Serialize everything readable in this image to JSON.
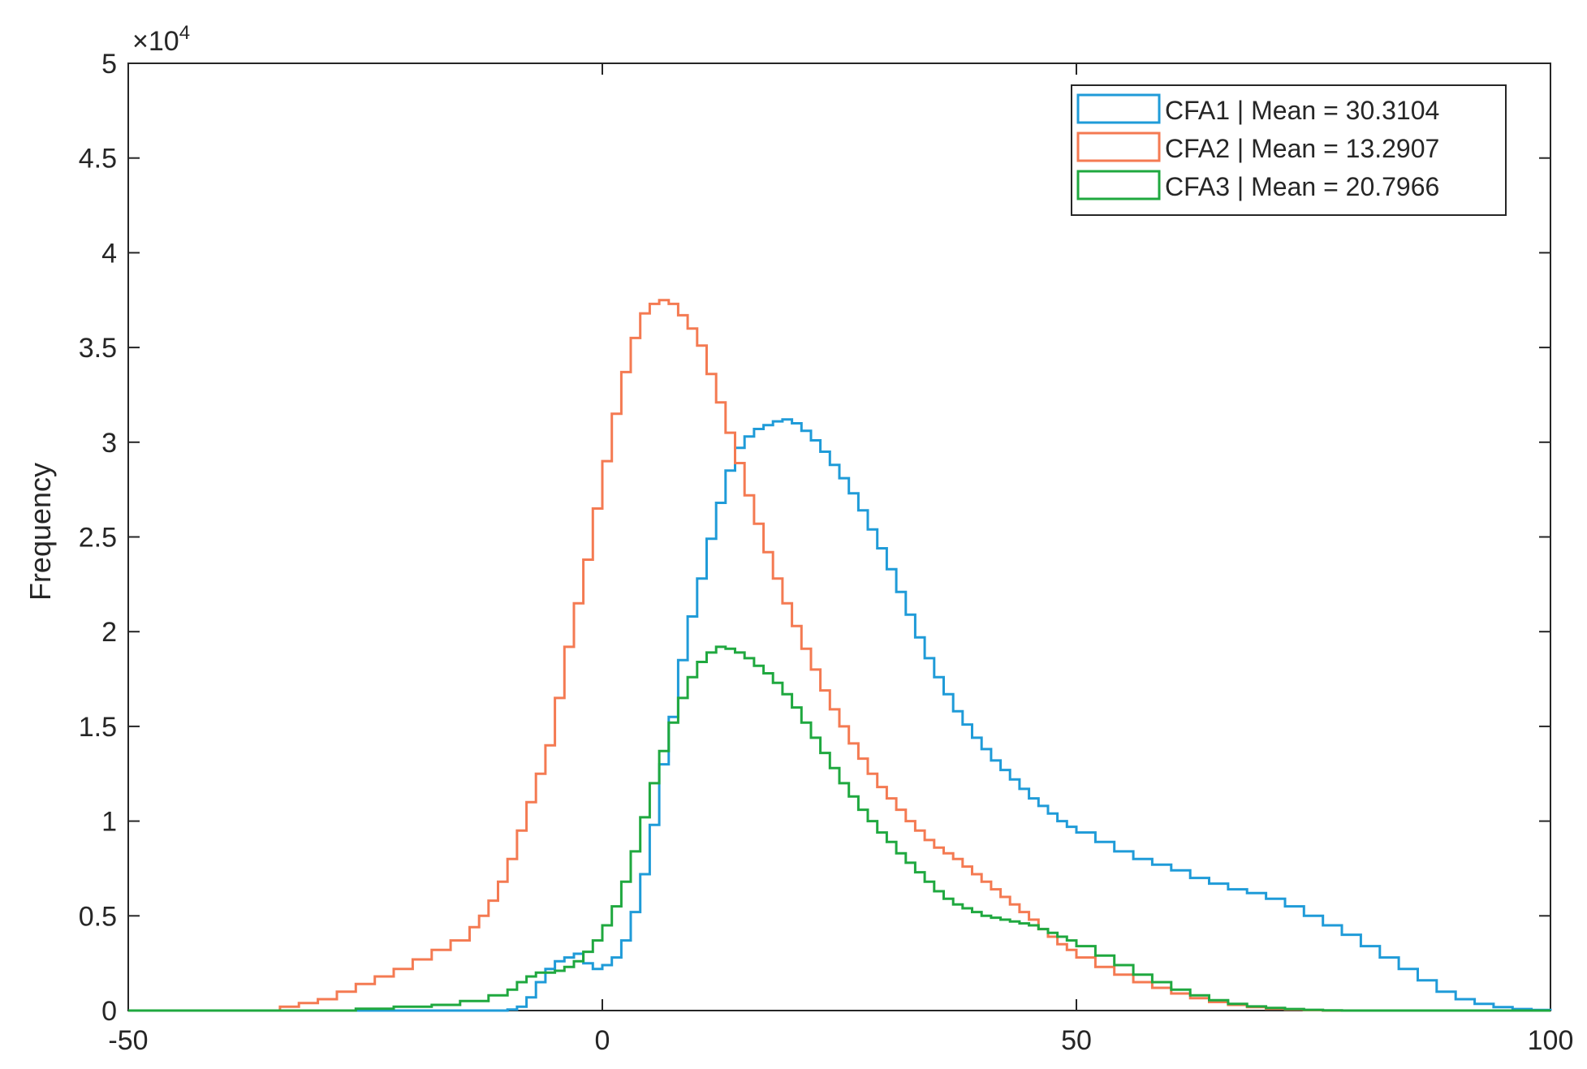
{
  "chart_data": {
    "type": "histogram",
    "title": "",
    "xlabel": "",
    "ylabel": "Frequency",
    "y_exponent_label": "×10",
    "y_exponent_power": "4",
    "y_exponent": 4,
    "xlim": [
      -50,
      100
    ],
    "ylim": [
      0,
      50000
    ],
    "xticks": [
      -50,
      0,
      50,
      100
    ],
    "xtick_labels": [
      "-50",
      "0",
      "50",
      "100"
    ],
    "yticks": [
      0,
      5000,
      10000,
      15000,
      20000,
      25000,
      30000,
      35000,
      40000,
      45000,
      50000
    ],
    "ytick_labels": [
      "0",
      "0.5",
      "1",
      "1.5",
      "2",
      "2.5",
      "3",
      "3.5",
      "4",
      "4.5",
      "5"
    ],
    "grid": false,
    "legend_position": "top-right",
    "series": [
      {
        "name": "CFA1 | Mean = 30.3104",
        "color": "#1f9bd8",
        "points": [
          [
            -50,
            0
          ],
          [
            -20,
            0
          ],
          [
            -10,
            50
          ],
          [
            -9,
            200
          ],
          [
            -8,
            700
          ],
          [
            -7,
            1500
          ],
          [
            -6,
            2200
          ],
          [
            -5,
            2600
          ],
          [
            -4,
            2800
          ],
          [
            -3,
            3000
          ],
          [
            -2,
            2500
          ],
          [
            -1,
            2200
          ],
          [
            0,
            2400
          ],
          [
            1,
            2800
          ],
          [
            2,
            3700
          ],
          [
            3,
            5200
          ],
          [
            4,
            7200
          ],
          [
            5,
            9800
          ],
          [
            6,
            13000
          ],
          [
            7,
            15500
          ],
          [
            8,
            18500
          ],
          [
            9,
            20800
          ],
          [
            10,
            22800
          ],
          [
            11,
            24900
          ],
          [
            12,
            26800
          ],
          [
            13,
            28500
          ],
          [
            14,
            29700
          ],
          [
            15,
            30300
          ],
          [
            16,
            30700
          ],
          [
            17,
            30900
          ],
          [
            18,
            31100
          ],
          [
            19,
            31200
          ],
          [
            20,
            31000
          ],
          [
            21,
            30600
          ],
          [
            22,
            30100
          ],
          [
            23,
            29500
          ],
          [
            24,
            28800
          ],
          [
            25,
            28100
          ],
          [
            26,
            27300
          ],
          [
            27,
            26400
          ],
          [
            28,
            25400
          ],
          [
            29,
            24400
          ],
          [
            30,
            23300
          ],
          [
            31,
            22100
          ],
          [
            32,
            20900
          ],
          [
            33,
            19700
          ],
          [
            34,
            18600
          ],
          [
            35,
            17600
          ],
          [
            36,
            16700
          ],
          [
            37,
            15800
          ],
          [
            38,
            15100
          ],
          [
            39,
            14400
          ],
          [
            40,
            13800
          ],
          [
            41,
            13200
          ],
          [
            42,
            12700
          ],
          [
            43,
            12200
          ],
          [
            44,
            11700
          ],
          [
            45,
            11200
          ],
          [
            46,
            10800
          ],
          [
            47,
            10400
          ],
          [
            48,
            10000
          ],
          [
            49,
            9700
          ],
          [
            50,
            9400
          ],
          [
            52,
            8900
          ],
          [
            54,
            8400
          ],
          [
            56,
            8000
          ],
          [
            58,
            7700
          ],
          [
            60,
            7400
          ],
          [
            62,
            7000
          ],
          [
            64,
            6700
          ],
          [
            66,
            6400
          ],
          [
            68,
            6200
          ],
          [
            70,
            5900
          ],
          [
            72,
            5500
          ],
          [
            74,
            5000
          ],
          [
            76,
            4500
          ],
          [
            78,
            4000
          ],
          [
            80,
            3400
          ],
          [
            82,
            2800
          ],
          [
            84,
            2200
          ],
          [
            86,
            1600
          ],
          [
            88,
            1000
          ],
          [
            90,
            600
          ],
          [
            92,
            350
          ],
          [
            94,
            180
          ],
          [
            96,
            80
          ],
          [
            98,
            30
          ],
          [
            100,
            0
          ]
        ]
      },
      {
        "name": "CFA2 | Mean = 13.2907",
        "color": "#f47a52",
        "points": [
          [
            -50,
            0
          ],
          [
            -37,
            0
          ],
          [
            -34,
            200
          ],
          [
            -32,
            400
          ],
          [
            -30,
            600
          ],
          [
            -28,
            1000
          ],
          [
            -26,
            1400
          ],
          [
            -24,
            1800
          ],
          [
            -22,
            2200
          ],
          [
            -20,
            2700
          ],
          [
            -18,
            3200
          ],
          [
            -16,
            3700
          ],
          [
            -14,
            4400
          ],
          [
            -13,
            5000
          ],
          [
            -12,
            5800
          ],
          [
            -11,
            6800
          ],
          [
            -10,
            8000
          ],
          [
            -9,
            9500
          ],
          [
            -8,
            11000
          ],
          [
            -7,
            12500
          ],
          [
            -6,
            14000
          ],
          [
            -5,
            16500
          ],
          [
            -4,
            19200
          ],
          [
            -3,
            21500
          ],
          [
            -2,
            23800
          ],
          [
            -1,
            26500
          ],
          [
            0,
            29000
          ],
          [
            1,
            31500
          ],
          [
            2,
            33700
          ],
          [
            3,
            35500
          ],
          [
            4,
            36800
          ],
          [
            5,
            37300
          ],
          [
            6,
            37500
          ],
          [
            7,
            37300
          ],
          [
            8,
            36700
          ],
          [
            9,
            36000
          ],
          [
            10,
            35100
          ],
          [
            11,
            33600
          ],
          [
            12,
            32100
          ],
          [
            13,
            30500
          ],
          [
            14,
            28900
          ],
          [
            15,
            27200
          ],
          [
            16,
            25700
          ],
          [
            17,
            24200
          ],
          [
            18,
            22800
          ],
          [
            19,
            21500
          ],
          [
            20,
            20300
          ],
          [
            21,
            19100
          ],
          [
            22,
            18000
          ],
          [
            23,
            16900
          ],
          [
            24,
            15900
          ],
          [
            25,
            15000
          ],
          [
            26,
            14100
          ],
          [
            27,
            13300
          ],
          [
            28,
            12500
          ],
          [
            29,
            11800
          ],
          [
            30,
            11200
          ],
          [
            31,
            10600
          ],
          [
            32,
            10000
          ],
          [
            33,
            9500
          ],
          [
            34,
            9000
          ],
          [
            35,
            8600
          ],
          [
            36,
            8300
          ],
          [
            37,
            8000
          ],
          [
            38,
            7600
          ],
          [
            39,
            7200
          ],
          [
            40,
            6800
          ],
          [
            41,
            6400
          ],
          [
            42,
            6000
          ],
          [
            43,
            5600
          ],
          [
            44,
            5200
          ],
          [
            45,
            4800
          ],
          [
            46,
            4300
          ],
          [
            47,
            3900
          ],
          [
            48,
            3500
          ],
          [
            49,
            3200
          ],
          [
            50,
            2800
          ],
          [
            52,
            2300
          ],
          [
            54,
            1900
          ],
          [
            56,
            1500
          ],
          [
            58,
            1200
          ],
          [
            60,
            900
          ],
          [
            62,
            650
          ],
          [
            64,
            450
          ],
          [
            66,
            300
          ],
          [
            68,
            180
          ],
          [
            70,
            100
          ],
          [
            72,
            50
          ],
          [
            74,
            20
          ],
          [
            76,
            0
          ],
          [
            100,
            0
          ]
        ]
      },
      {
        "name": "CFA3 | Mean = 20.7966",
        "color": "#1fa83f",
        "points": [
          [
            -50,
            0
          ],
          [
            -30,
            0
          ],
          [
            -26,
            100
          ],
          [
            -22,
            200
          ],
          [
            -18,
            300
          ],
          [
            -15,
            500
          ],
          [
            -12,
            800
          ],
          [
            -10,
            1100
          ],
          [
            -9,
            1500
          ],
          [
            -8,
            1800
          ],
          [
            -7,
            2000
          ],
          [
            -6,
            2000
          ],
          [
            -5,
            2100
          ],
          [
            -4,
            2300
          ],
          [
            -3,
            2600
          ],
          [
            -2,
            3100
          ],
          [
            -1,
            3700
          ],
          [
            0,
            4500
          ],
          [
            1,
            5500
          ],
          [
            2,
            6800
          ],
          [
            3,
            8400
          ],
          [
            4,
            10200
          ],
          [
            5,
            12000
          ],
          [
            6,
            13700
          ],
          [
            7,
            15200
          ],
          [
            8,
            16500
          ],
          [
            9,
            17600
          ],
          [
            10,
            18400
          ],
          [
            11,
            18900
          ],
          [
            12,
            19200
          ],
          [
            13,
            19100
          ],
          [
            14,
            18900
          ],
          [
            15,
            18600
          ],
          [
            16,
            18200
          ],
          [
            17,
            17800
          ],
          [
            18,
            17300
          ],
          [
            19,
            16700
          ],
          [
            20,
            16000
          ],
          [
            21,
            15200
          ],
          [
            22,
            14400
          ],
          [
            23,
            13600
          ],
          [
            24,
            12800
          ],
          [
            25,
            12000
          ],
          [
            26,
            11300
          ],
          [
            27,
            10600
          ],
          [
            28,
            10000
          ],
          [
            29,
            9400
          ],
          [
            30,
            8900
          ],
          [
            31,
            8300
          ],
          [
            32,
            7800
          ],
          [
            33,
            7300
          ],
          [
            34,
            6800
          ],
          [
            35,
            6300
          ],
          [
            36,
            5900
          ],
          [
            37,
            5600
          ],
          [
            38,
            5400
          ],
          [
            39,
            5200
          ],
          [
            40,
            5000
          ],
          [
            41,
            4900
          ],
          [
            42,
            4800
          ],
          [
            43,
            4700
          ],
          [
            44,
            4600
          ],
          [
            45,
            4500
          ],
          [
            46,
            4300
          ],
          [
            47,
            4100
          ],
          [
            48,
            3900
          ],
          [
            49,
            3700
          ],
          [
            50,
            3400
          ],
          [
            52,
            2900
          ],
          [
            54,
            2400
          ],
          [
            56,
            1900
          ],
          [
            58,
            1500
          ],
          [
            60,
            1100
          ],
          [
            62,
            800
          ],
          [
            64,
            550
          ],
          [
            66,
            350
          ],
          [
            68,
            220
          ],
          [
            70,
            140
          ],
          [
            72,
            80
          ],
          [
            74,
            40
          ],
          [
            76,
            10
          ],
          [
            78,
            0
          ],
          [
            100,
            0
          ]
        ]
      }
    ]
  }
}
